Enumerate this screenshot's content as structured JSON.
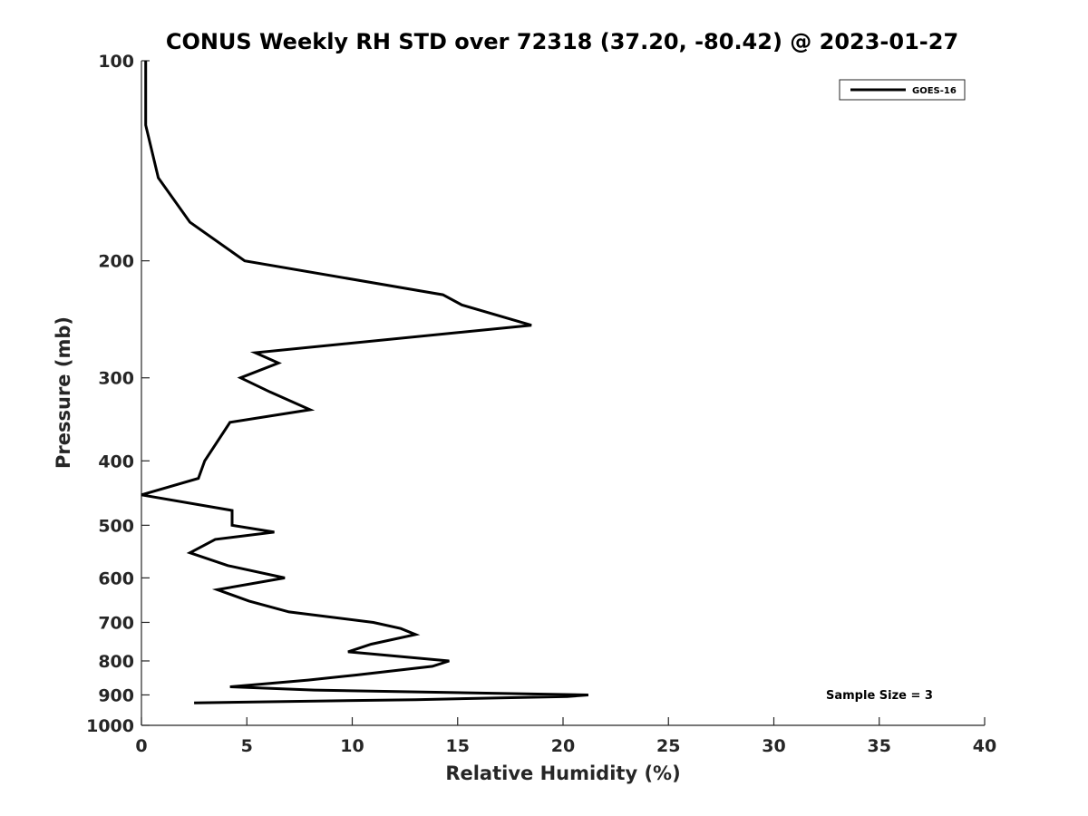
{
  "chart_data": {
    "type": "line",
    "title": "CONUS Weekly RH STD over 72318 (37.20, -80.42) @ 2023-01-27",
    "xlabel": "Relative Humidity (%)",
    "ylabel": "Pressure (mb)",
    "xlim": [
      0,
      40
    ],
    "ylim": [
      100,
      1000
    ],
    "y_scale": "log",
    "y_reversed": true,
    "x_ticks": [
      "0",
      "5",
      "10",
      "15",
      "20",
      "25",
      "30",
      "35",
      "40"
    ],
    "y_ticks": [
      "100",
      "200",
      "300",
      "400",
      "500",
      "600",
      "700",
      "800",
      "900",
      "1000"
    ],
    "grid": false,
    "legend_position": "top-right",
    "annotation": "Sample Size = 3",
    "series": [
      {
        "name": "GOES-16",
        "color": "#000000",
        "points": [
          [
            0.2,
            100
          ],
          [
            0.2,
            125
          ],
          [
            0.8,
            150
          ],
          [
            2.3,
            175
          ],
          [
            4.9,
            200
          ],
          [
            14.3,
            225
          ],
          [
            15.2,
            233
          ],
          [
            18.5,
            250
          ],
          [
            5.4,
            275
          ],
          [
            6.5,
            285
          ],
          [
            4.7,
            300
          ],
          [
            6.1,
            315
          ],
          [
            8.0,
            335
          ],
          [
            4.2,
            350
          ],
          [
            3.0,
            400
          ],
          [
            2.7,
            425
          ],
          [
            0.0,
            450
          ],
          [
            4.3,
            475
          ],
          [
            4.3,
            500
          ],
          [
            6.3,
            512
          ],
          [
            3.5,
            525
          ],
          [
            2.3,
            550
          ],
          [
            4.1,
            575
          ],
          [
            6.8,
            600
          ],
          [
            3.6,
            625
          ],
          [
            5.1,
            650
          ],
          [
            7.0,
            675
          ],
          [
            11.0,
            700
          ],
          [
            12.3,
            715
          ],
          [
            13.0,
            730
          ],
          [
            10.9,
            755
          ],
          [
            9.8,
            775
          ],
          [
            14.6,
            800
          ],
          [
            13.8,
            815
          ],
          [
            10.2,
            840
          ],
          [
            7.9,
            855
          ],
          [
            4.2,
            875
          ],
          [
            8.2,
            885
          ],
          [
            21.2,
            900
          ],
          [
            20.2,
            905
          ],
          [
            13.0,
            915
          ],
          [
            2.5,
            925
          ]
        ]
      }
    ]
  }
}
